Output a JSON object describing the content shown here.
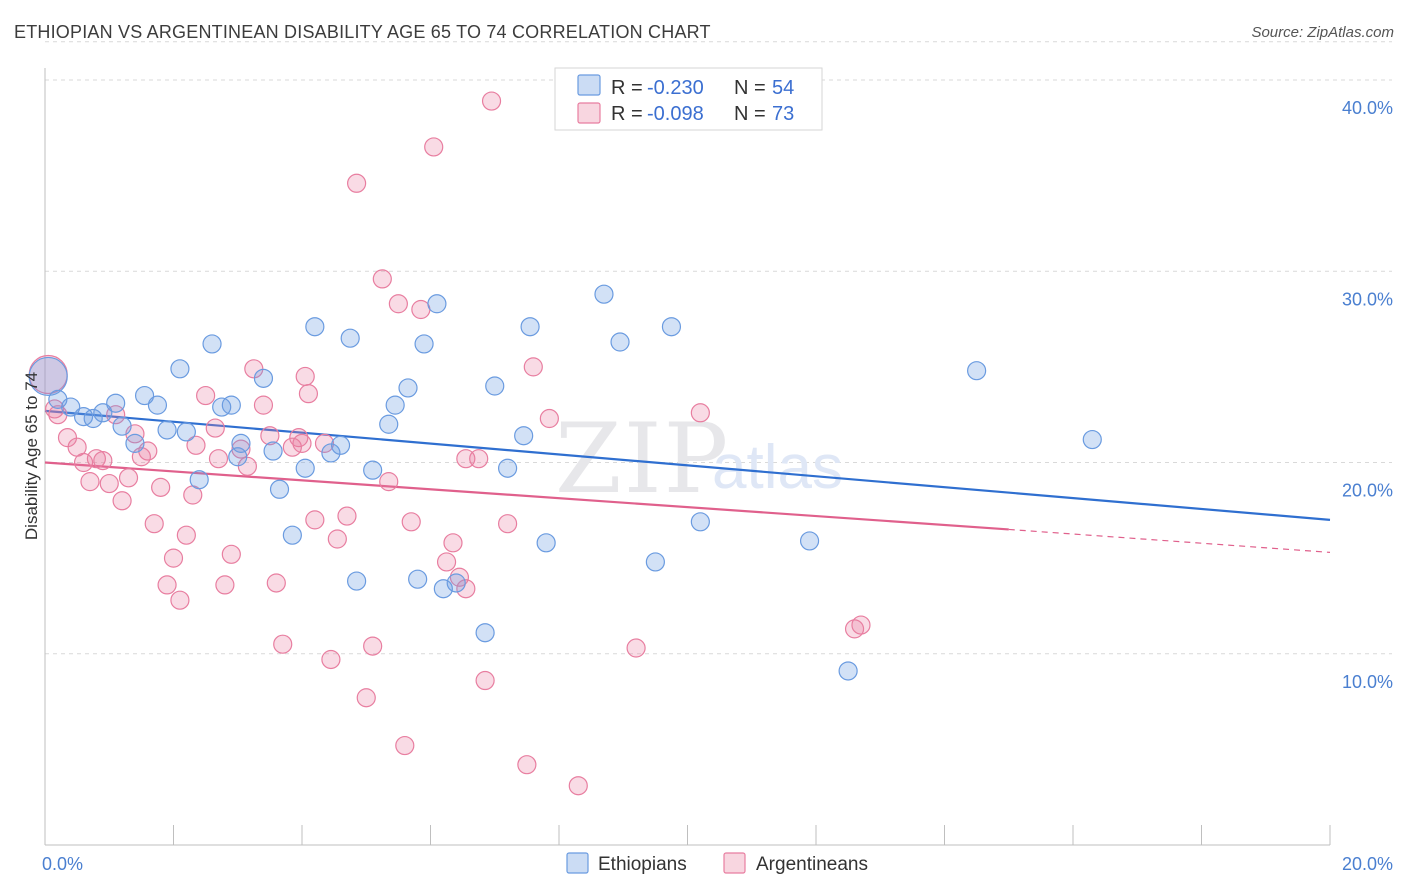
{
  "header": {
    "title": "ETHIOPIAN VS ARGENTINEAN DISABILITY AGE 65 TO 74 CORRELATION CHART",
    "source": "Source: ZipAtlas.com"
  },
  "watermark": {
    "part1": "ZIP",
    "part2": "atlas"
  },
  "legend": {
    "r_label": "R = ",
    "n_label": "N = ",
    "entries": [
      {
        "r": "-0.230",
        "n": "54",
        "color": "#6a9be0"
      },
      {
        "r": "-0.098",
        "n": "73",
        "color": "#e87ea0"
      }
    ]
  },
  "bottom_legend": [
    "Ethiopians",
    "Argentineans"
  ],
  "chart_data": {
    "type": "scatter",
    "title": "ETHIOPIAN VS ARGENTINEAN DISABILITY AGE 65 TO 74 CORRELATION CHART",
    "xlabel": "",
    "ylabel": "Disability Age 65 to 74",
    "xlim": [
      0,
      20
    ],
    "ylim": [
      0,
      40
    ],
    "x_tick_labels": [
      "0.0%",
      "20.0%"
    ],
    "y_tick_labels": [
      "10.0%",
      "20.0%",
      "30.0%",
      "40.0%"
    ],
    "y_ticks": [
      10,
      20,
      30,
      40
    ],
    "grid": "horizontal dashed",
    "legend_position": "top-center",
    "series": [
      {
        "name": "Ethiopians",
        "color": "#6a9be0",
        "trend": {
          "x": [
            0,
            20
          ],
          "y": [
            22.7,
            17.0
          ],
          "dashed_from": null
        },
        "points": [
          [
            0.05,
            24.5
          ],
          [
            0.2,
            23.3
          ],
          [
            0.4,
            22.9
          ],
          [
            0.6,
            22.4
          ],
          [
            0.75,
            22.3
          ],
          [
            0.9,
            22.6
          ],
          [
            1.1,
            23.1
          ],
          [
            1.2,
            21.9
          ],
          [
            1.4,
            21.0
          ],
          [
            1.55,
            23.5
          ],
          [
            1.75,
            23.0
          ],
          [
            1.9,
            21.7
          ],
          [
            2.1,
            24.9
          ],
          [
            2.2,
            21.6
          ],
          [
            2.4,
            19.1
          ],
          [
            2.6,
            26.2
          ],
          [
            2.75,
            22.9
          ],
          [
            2.9,
            23.0
          ],
          [
            3.0,
            20.3
          ],
          [
            3.05,
            21.0
          ],
          [
            3.4,
            24.4
          ],
          [
            3.55,
            20.6
          ],
          [
            3.65,
            18.6
          ],
          [
            3.85,
            16.2
          ],
          [
            4.05,
            19.7
          ],
          [
            4.2,
            27.1
          ],
          [
            4.45,
            20.5
          ],
          [
            4.6,
            20.9
          ],
          [
            4.75,
            26.5
          ],
          [
            4.85,
            13.8
          ],
          [
            5.1,
            19.6
          ],
          [
            5.35,
            22.0
          ],
          [
            5.45,
            23.0
          ],
          [
            5.65,
            23.9
          ],
          [
            5.8,
            13.9
          ],
          [
            5.9,
            26.2
          ],
          [
            6.1,
            28.3
          ],
          [
            6.2,
            13.4
          ],
          [
            6.4,
            13.7
          ],
          [
            6.85,
            11.1
          ],
          [
            7.0,
            24.0
          ],
          [
            7.2,
            19.7
          ],
          [
            7.45,
            21.4
          ],
          [
            7.55,
            27.1
          ],
          [
            7.8,
            15.8
          ],
          [
            8.7,
            28.8
          ],
          [
            8.95,
            26.3
          ],
          [
            9.5,
            14.8
          ],
          [
            9.75,
            27.1
          ],
          [
            10.2,
            16.9
          ],
          [
            11.9,
            15.9
          ],
          [
            12.5,
            9.1
          ],
          [
            14.5,
            24.8
          ],
          [
            16.3,
            21.2
          ]
        ]
      },
      {
        "name": "Argentineans",
        "color": "#e87ea0",
        "trend": {
          "x": [
            0,
            15
          ],
          "y": [
            20.0,
            16.5
          ],
          "dashed_x": [
            15,
            20
          ],
          "dashed_y": [
            16.5,
            15.3
          ]
        },
        "points": [
          [
            0.05,
            24.6
          ],
          [
            0.2,
            22.5
          ],
          [
            0.35,
            21.3
          ],
          [
            0.5,
            20.8
          ],
          [
            0.6,
            20.0
          ],
          [
            0.7,
            19.0
          ],
          [
            0.8,
            20.2
          ],
          [
            0.9,
            20.1
          ],
          [
            1.0,
            18.9
          ],
          [
            1.1,
            22.5
          ],
          [
            1.2,
            18.0
          ],
          [
            1.3,
            19.2
          ],
          [
            1.4,
            21.5
          ],
          [
            1.5,
            20.3
          ],
          [
            1.6,
            20.6
          ],
          [
            1.7,
            16.8
          ],
          [
            1.8,
            18.7
          ],
          [
            1.9,
            13.6
          ],
          [
            2.0,
            15.0
          ],
          [
            2.1,
            12.8
          ],
          [
            2.2,
            16.2
          ],
          [
            2.35,
            20.9
          ],
          [
            2.5,
            23.5
          ],
          [
            2.65,
            21.8
          ],
          [
            2.7,
            20.2
          ],
          [
            2.8,
            13.6
          ],
          [
            2.9,
            15.2
          ],
          [
            3.05,
            20.7
          ],
          [
            3.15,
            19.8
          ],
          [
            3.25,
            24.9
          ],
          [
            3.4,
            23.0
          ],
          [
            3.5,
            21.4
          ],
          [
            3.6,
            13.7
          ],
          [
            3.7,
            10.5
          ],
          [
            3.85,
            20.8
          ],
          [
            3.95,
            21.3
          ],
          [
            4.05,
            24.5
          ],
          [
            4.1,
            23.6
          ],
          [
            4.2,
            17.0
          ],
          [
            4.35,
            21.0
          ],
          [
            4.45,
            9.7
          ],
          [
            4.55,
            16.0
          ],
          [
            4.7,
            17.2
          ],
          [
            4.85,
            34.6
          ],
          [
            5.0,
            7.7
          ],
          [
            5.1,
            10.4
          ],
          [
            5.35,
            19.0
          ],
          [
            5.5,
            28.3
          ],
          [
            5.6,
            5.2
          ],
          [
            5.7,
            16.9
          ],
          [
            5.85,
            28.0
          ],
          [
            6.05,
            36.5
          ],
          [
            6.25,
            14.8
          ],
          [
            6.35,
            15.8
          ],
          [
            6.45,
            14.0
          ],
          [
            6.55,
            20.2
          ],
          [
            6.75,
            20.2
          ],
          [
            6.85,
            8.6
          ],
          [
            6.95,
            38.9
          ],
          [
            7.2,
            16.8
          ],
          [
            7.5,
            4.2
          ],
          [
            7.6,
            25.0
          ],
          [
            7.85,
            22.3
          ],
          [
            8.3,
            3.1
          ],
          [
            9.2,
            10.3
          ],
          [
            10.2,
            22.6
          ],
          [
            12.6,
            11.3
          ],
          [
            12.7,
            11.5
          ],
          [
            4.0,
            21.0
          ],
          [
            2.3,
            18.3
          ],
          [
            5.25,
            29.6
          ],
          [
            6.55,
            13.4
          ],
          [
            0.15,
            22.8
          ]
        ]
      }
    ]
  }
}
